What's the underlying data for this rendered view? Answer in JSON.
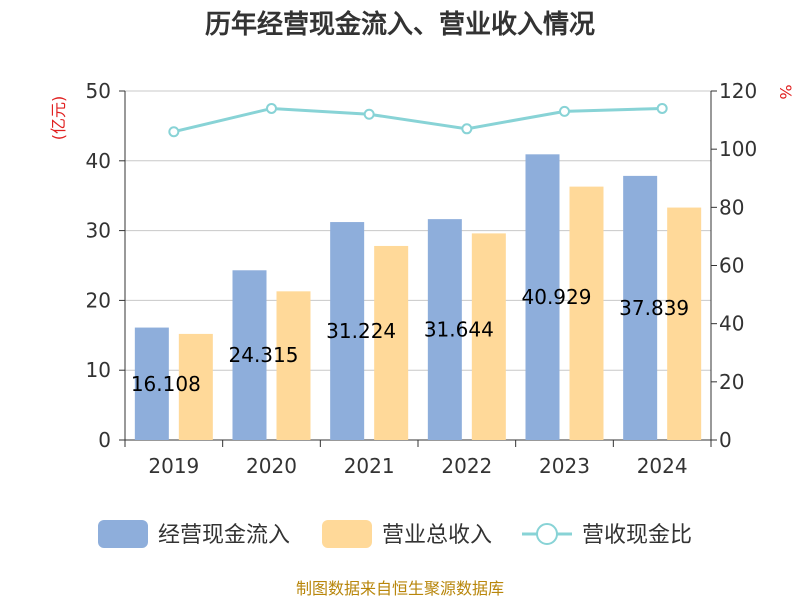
{
  "chart_data": {
    "type": "bar",
    "title": "历年经营现金流入、营业收入情况",
    "categories": [
      "2019",
      "2020",
      "2021",
      "2022",
      "2023",
      "2024"
    ],
    "series": [
      {
        "name": "经营现金流入",
        "type": "bar",
        "axis": "left",
        "color": "#8eaedb",
        "values": [
          16.108,
          24.315,
          31.224,
          31.644,
          40.929,
          37.839
        ],
        "labels": [
          "16.108",
          "24.315",
          "31.224",
          "31.644",
          "40.929",
          "37.839"
        ]
      },
      {
        "name": "营业总收入",
        "type": "bar",
        "axis": "left",
        "color": "#ffd999",
        "values": [
          15.2,
          21.3,
          27.8,
          29.6,
          36.3,
          33.3
        ]
      },
      {
        "name": "营收现金比",
        "type": "line",
        "axis": "right",
        "color": "#88d3d6",
        "values": [
          106,
          114,
          112,
          107,
          113,
          114
        ]
      }
    ],
    "y_left": {
      "unit": "(亿元)",
      "min": 0,
      "max": 50,
      "ticks": [
        0,
        10,
        20,
        30,
        40,
        50
      ]
    },
    "y_right": {
      "unit": "%",
      "min": 0,
      "max": 120,
      "ticks": [
        0,
        20,
        40,
        60,
        80,
        100,
        120
      ]
    },
    "grid": true,
    "legend_position": "bottom",
    "source": "制图数据来自恒生聚源数据库"
  }
}
